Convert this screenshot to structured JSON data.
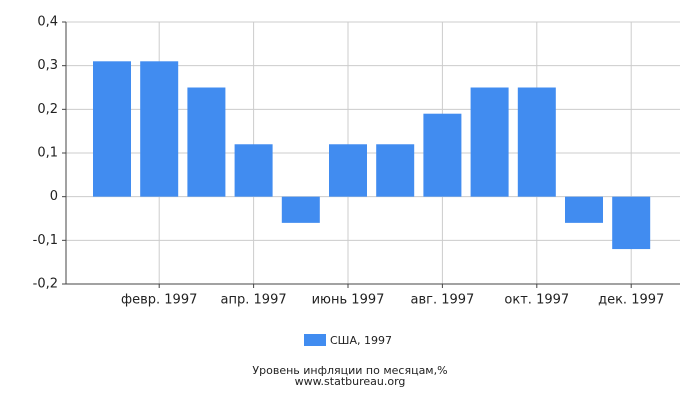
{
  "chart_data": {
    "type": "bar",
    "title": "Уровень инфляции по месяцам,%",
    "source": "www.statbureau.org",
    "categories": [
      null,
      "февр. 1997",
      null,
      "апр. 1997",
      null,
      "июнь 1997",
      null,
      "авг. 1997",
      null,
      "окт. 1997",
      null,
      "дек. 1997"
    ],
    "series": [
      {
        "name": "США, 1997",
        "color": "#418cf0",
        "values": [
          0.31,
          0.31,
          0.25,
          0.12,
          -0.06,
          0.12,
          0.12,
          0.19,
          0.25,
          0.25,
          -0.06,
          -0.12
        ]
      }
    ],
    "ylim": [
      -0.2,
      0.4
    ],
    "yticks": [
      {
        "value": -0.2,
        "label": "-0,2"
      },
      {
        "value": -0.1,
        "label": "-0,1"
      },
      0,
      {
        "value": 0.1,
        "label": "0,1"
      },
      {
        "value": 0.2,
        "label": "0,2"
      },
      {
        "value": 0.3,
        "label": "0,3"
      },
      {
        "value": 0.4,
        "label": "0,4"
      }
    ],
    "grid": true
  }
}
